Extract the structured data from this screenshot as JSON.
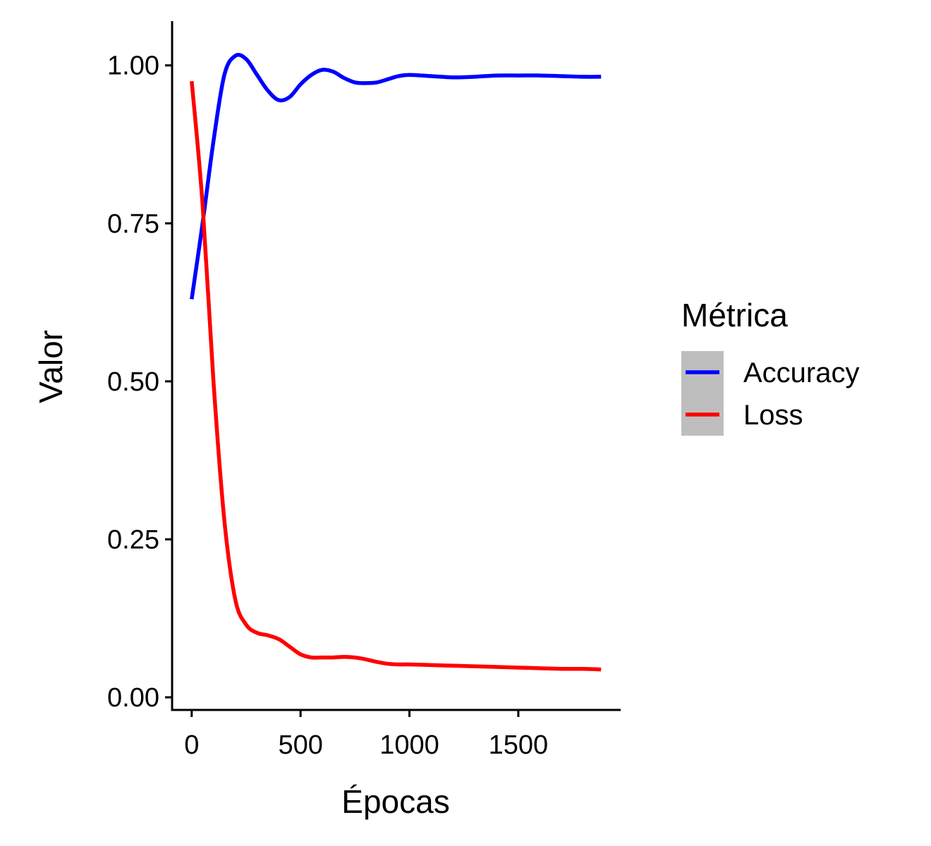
{
  "chart_data": {
    "type": "line",
    "xlabel": "Épocas",
    "ylabel": "Valor",
    "xlim": [
      -90,
      1970
    ],
    "ylim": [
      -0.02,
      1.07
    ],
    "x_ticks": [
      0,
      500,
      1000,
      1500
    ],
    "x_tick_labels": [
      "0",
      "500",
      "1000",
      "1500"
    ],
    "y_ticks": [
      0,
      0.25,
      0.5,
      0.75,
      1.0
    ],
    "y_tick_labels": [
      "0.00",
      "0.25",
      "0.50",
      "0.75",
      "1.00"
    ],
    "grid": false,
    "legend": {
      "title": "Métrica",
      "position": "right",
      "background": "#bebebe"
    },
    "series": [
      {
        "name": "Accuracy",
        "color": "#0000ff",
        "x": [
          0,
          50,
          100,
          150,
          200,
          250,
          300,
          350,
          400,
          450,
          500,
          550,
          600,
          650,
          700,
          750,
          800,
          850,
          900,
          950,
          1000,
          1100,
          1200,
          1300,
          1400,
          1500,
          1600,
          1700,
          1800,
          1880
        ],
        "y": [
          0.63,
          0.75,
          0.88,
          0.985,
          1.015,
          1.01,
          0.985,
          0.96,
          0.945,
          0.95,
          0.97,
          0.985,
          0.993,
          0.99,
          0.98,
          0.973,
          0.972,
          0.973,
          0.978,
          0.983,
          0.985,
          0.983,
          0.981,
          0.982,
          0.984,
          0.984,
          0.984,
          0.983,
          0.982,
          0.982
        ]
      },
      {
        "name": "Loss",
        "color": "#ff0000",
        "x": [
          0,
          50,
          100,
          150,
          200,
          250,
          300,
          350,
          400,
          450,
          500,
          550,
          600,
          650,
          700,
          750,
          800,
          850,
          900,
          950,
          1000,
          1100,
          1200,
          1300,
          1400,
          1500,
          1600,
          1700,
          1800,
          1880
        ],
        "y": [
          0.975,
          0.78,
          0.5,
          0.28,
          0.155,
          0.115,
          0.102,
          0.098,
          0.092,
          0.08,
          0.068,
          0.063,
          0.063,
          0.063,
          0.064,
          0.063,
          0.06,
          0.056,
          0.053,
          0.052,
          0.052,
          0.051,
          0.05,
          0.049,
          0.048,
          0.047,
          0.046,
          0.045,
          0.045,
          0.044
        ]
      }
    ]
  }
}
